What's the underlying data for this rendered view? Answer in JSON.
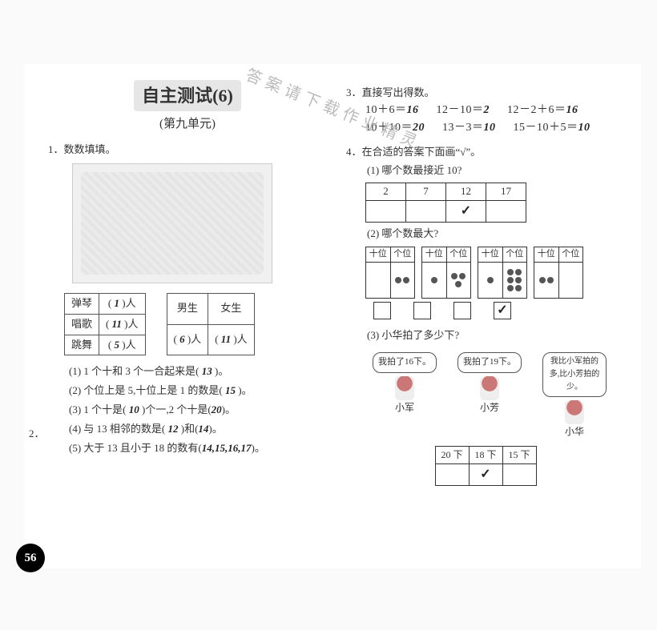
{
  "side_label": "自主测试（6）",
  "title": "自主测试(6)",
  "subtitle": "(第九单元)",
  "watermark": "答案请下载作业精灵",
  "page_number": "56",
  "q1": {
    "heading": "1．数数填填。",
    "tableA": {
      "rows": [
        {
          "label": "弹琴",
          "val": "1"
        },
        {
          "label": "唱歌",
          "val": "11"
        },
        {
          "label": "跳舞",
          "val": "5"
        }
      ]
    },
    "tableB": {
      "head": [
        "男生",
        "女生"
      ],
      "row": [
        "6",
        "11"
      ]
    }
  },
  "q2": {
    "heading": "2．",
    "items": [
      {
        "text_a": "(1) 1 个十和 3 个一合起来是(",
        "ans": "13",
        "text_b": ")。"
      },
      {
        "text_a": "(2) 个位上是 5,十位上是 1 的数是(",
        "ans": "15",
        "text_b": ")。"
      },
      {
        "text_a": "(3) 1 个十是(",
        "ans": "10",
        "mid": ")个一,2 个十是(",
        "ans2": "20",
        "text_b": ")。"
      },
      {
        "text_a": "(4) 与 13 相邻的数是(",
        "ans": "12",
        "mid": ")和(",
        "ans2": "14",
        "text_b": ")。"
      },
      {
        "text_a": "(5) 大于 13 且小于 18 的数有(",
        "ans": "14,15,16,17",
        "text_b": ")。"
      }
    ]
  },
  "q3": {
    "heading": "3．直接写出得数。",
    "eqs": [
      [
        "10＋6＝",
        "16",
        "12－10＝",
        "2",
        "12－2＋6＝",
        "16"
      ],
      [
        "10＋10＝",
        "20",
        "13－3＝",
        "10",
        "15－10＋5＝",
        "10"
      ]
    ]
  },
  "q4": {
    "heading": "4．在合适的答案下面画“√”。",
    "p1": {
      "label": "(1) 哪个数最接近 10?",
      "options": [
        "2",
        "7",
        "12",
        "17"
      ],
      "checked_index": 2
    },
    "p2": {
      "label": "(2) 哪个数最大?",
      "col_labels": [
        "十位",
        "个位"
      ],
      "items": [
        {
          "tens": 0,
          "ones": 2
        },
        {
          "tens": 1,
          "ones": 3
        },
        {
          "tens": 1,
          "ones": 6
        },
        {
          "tens": 2,
          "ones": 0
        }
      ],
      "checked_index": 3
    },
    "p3": {
      "label": "(3) 小华拍了多少下?",
      "kids": [
        {
          "name": "小军",
          "bubble": "我拍了16下。"
        },
        {
          "name": "小芳",
          "bubble": "我拍了19下。"
        },
        {
          "name": "小华",
          "bubble": "我比小军拍的多,比小芳拍的少。"
        }
      ],
      "options": [
        "20 下",
        "18 下",
        "15 下"
      ],
      "checked_index": 1
    }
  }
}
